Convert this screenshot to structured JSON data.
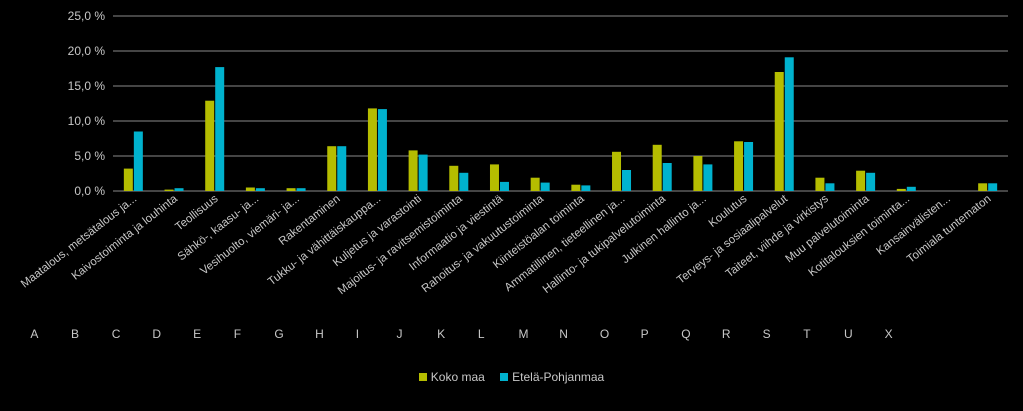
{
  "chart_data": {
    "type": "bar",
    "categories": [
      {
        "code": "A",
        "label": "Maatalous, metsätalous ja..."
      },
      {
        "code": "B",
        "label": "Kaivostoiminta ja louhinta"
      },
      {
        "code": "C",
        "label": "Teollisuus"
      },
      {
        "code": "D",
        "label": "Sähkö-, kaasu- ja..."
      },
      {
        "code": "E",
        "label": "Vesihuolto, viemäri- ja..."
      },
      {
        "code": "F",
        "label": "Rakentaminen"
      },
      {
        "code": "G",
        "label": "Tukku- ja vähittäiskauppa..."
      },
      {
        "code": "H",
        "label": "Kuljetus ja varastointi"
      },
      {
        "code": "I",
        "label": "Majoitus- ja ravitsemistoiminta"
      },
      {
        "code": "J",
        "label": "Informaatio ja viestintä"
      },
      {
        "code": "K",
        "label": "Rahoitus- ja vakuutustoiminta"
      },
      {
        "code": "L",
        "label": "Kiinteistöalan toiminta"
      },
      {
        "code": "M",
        "label": "Ammatillinen, tieteellinen ja..."
      },
      {
        "code": "N",
        "label": "Hallinto- ja tukipalvelutoiminta"
      },
      {
        "code": "O",
        "label": "Julkinen hallinto ja..."
      },
      {
        "code": "P",
        "label": "Koulutus"
      },
      {
        "code": "Q",
        "label": "Terveys- ja sosiaalipalvelut"
      },
      {
        "code": "R",
        "label": "Taiteet, viihde ja virkistys"
      },
      {
        "code": "S",
        "label": "Muu palvelutoiminta"
      },
      {
        "code": "T",
        "label": "Kotitalouksien toiminta..."
      },
      {
        "code": "U",
        "label": "Kansainvälisten..."
      },
      {
        "code": "X",
        "label": "Toimiala tuntematon"
      }
    ],
    "series": [
      {
        "name": "Koko maa",
        "color": "#b5bd00",
        "values": [
          3.2,
          0.2,
          12.9,
          0.5,
          0.4,
          6.4,
          11.8,
          5.8,
          3.6,
          3.8,
          1.9,
          0.9,
          5.6,
          6.6,
          5.0,
          7.1,
          17.0,
          1.9,
          2.9,
          0.3,
          0.0,
          1.1
        ]
      },
      {
        "name": "Etelä-Pohjanmaa",
        "color": "#00b2ce",
        "values": [
          8.5,
          0.4,
          17.7,
          0.4,
          0.4,
          6.4,
          11.7,
          5.2,
          2.6,
          1.3,
          1.2,
          0.8,
          3.0,
          4.0,
          3.8,
          7.0,
          19.1,
          1.1,
          2.6,
          0.6,
          0.0,
          1.1
        ]
      }
    ],
    "ylim": [
      0,
      25
    ],
    "yticks": [
      "0,0 %",
      "5,0 %",
      "10,0 %",
      "15,0 %",
      "20,0 %",
      "25,0 %"
    ],
    "grid": true,
    "legend_position": "bottom",
    "title": "",
    "xlabel": "",
    "ylabel": ""
  }
}
